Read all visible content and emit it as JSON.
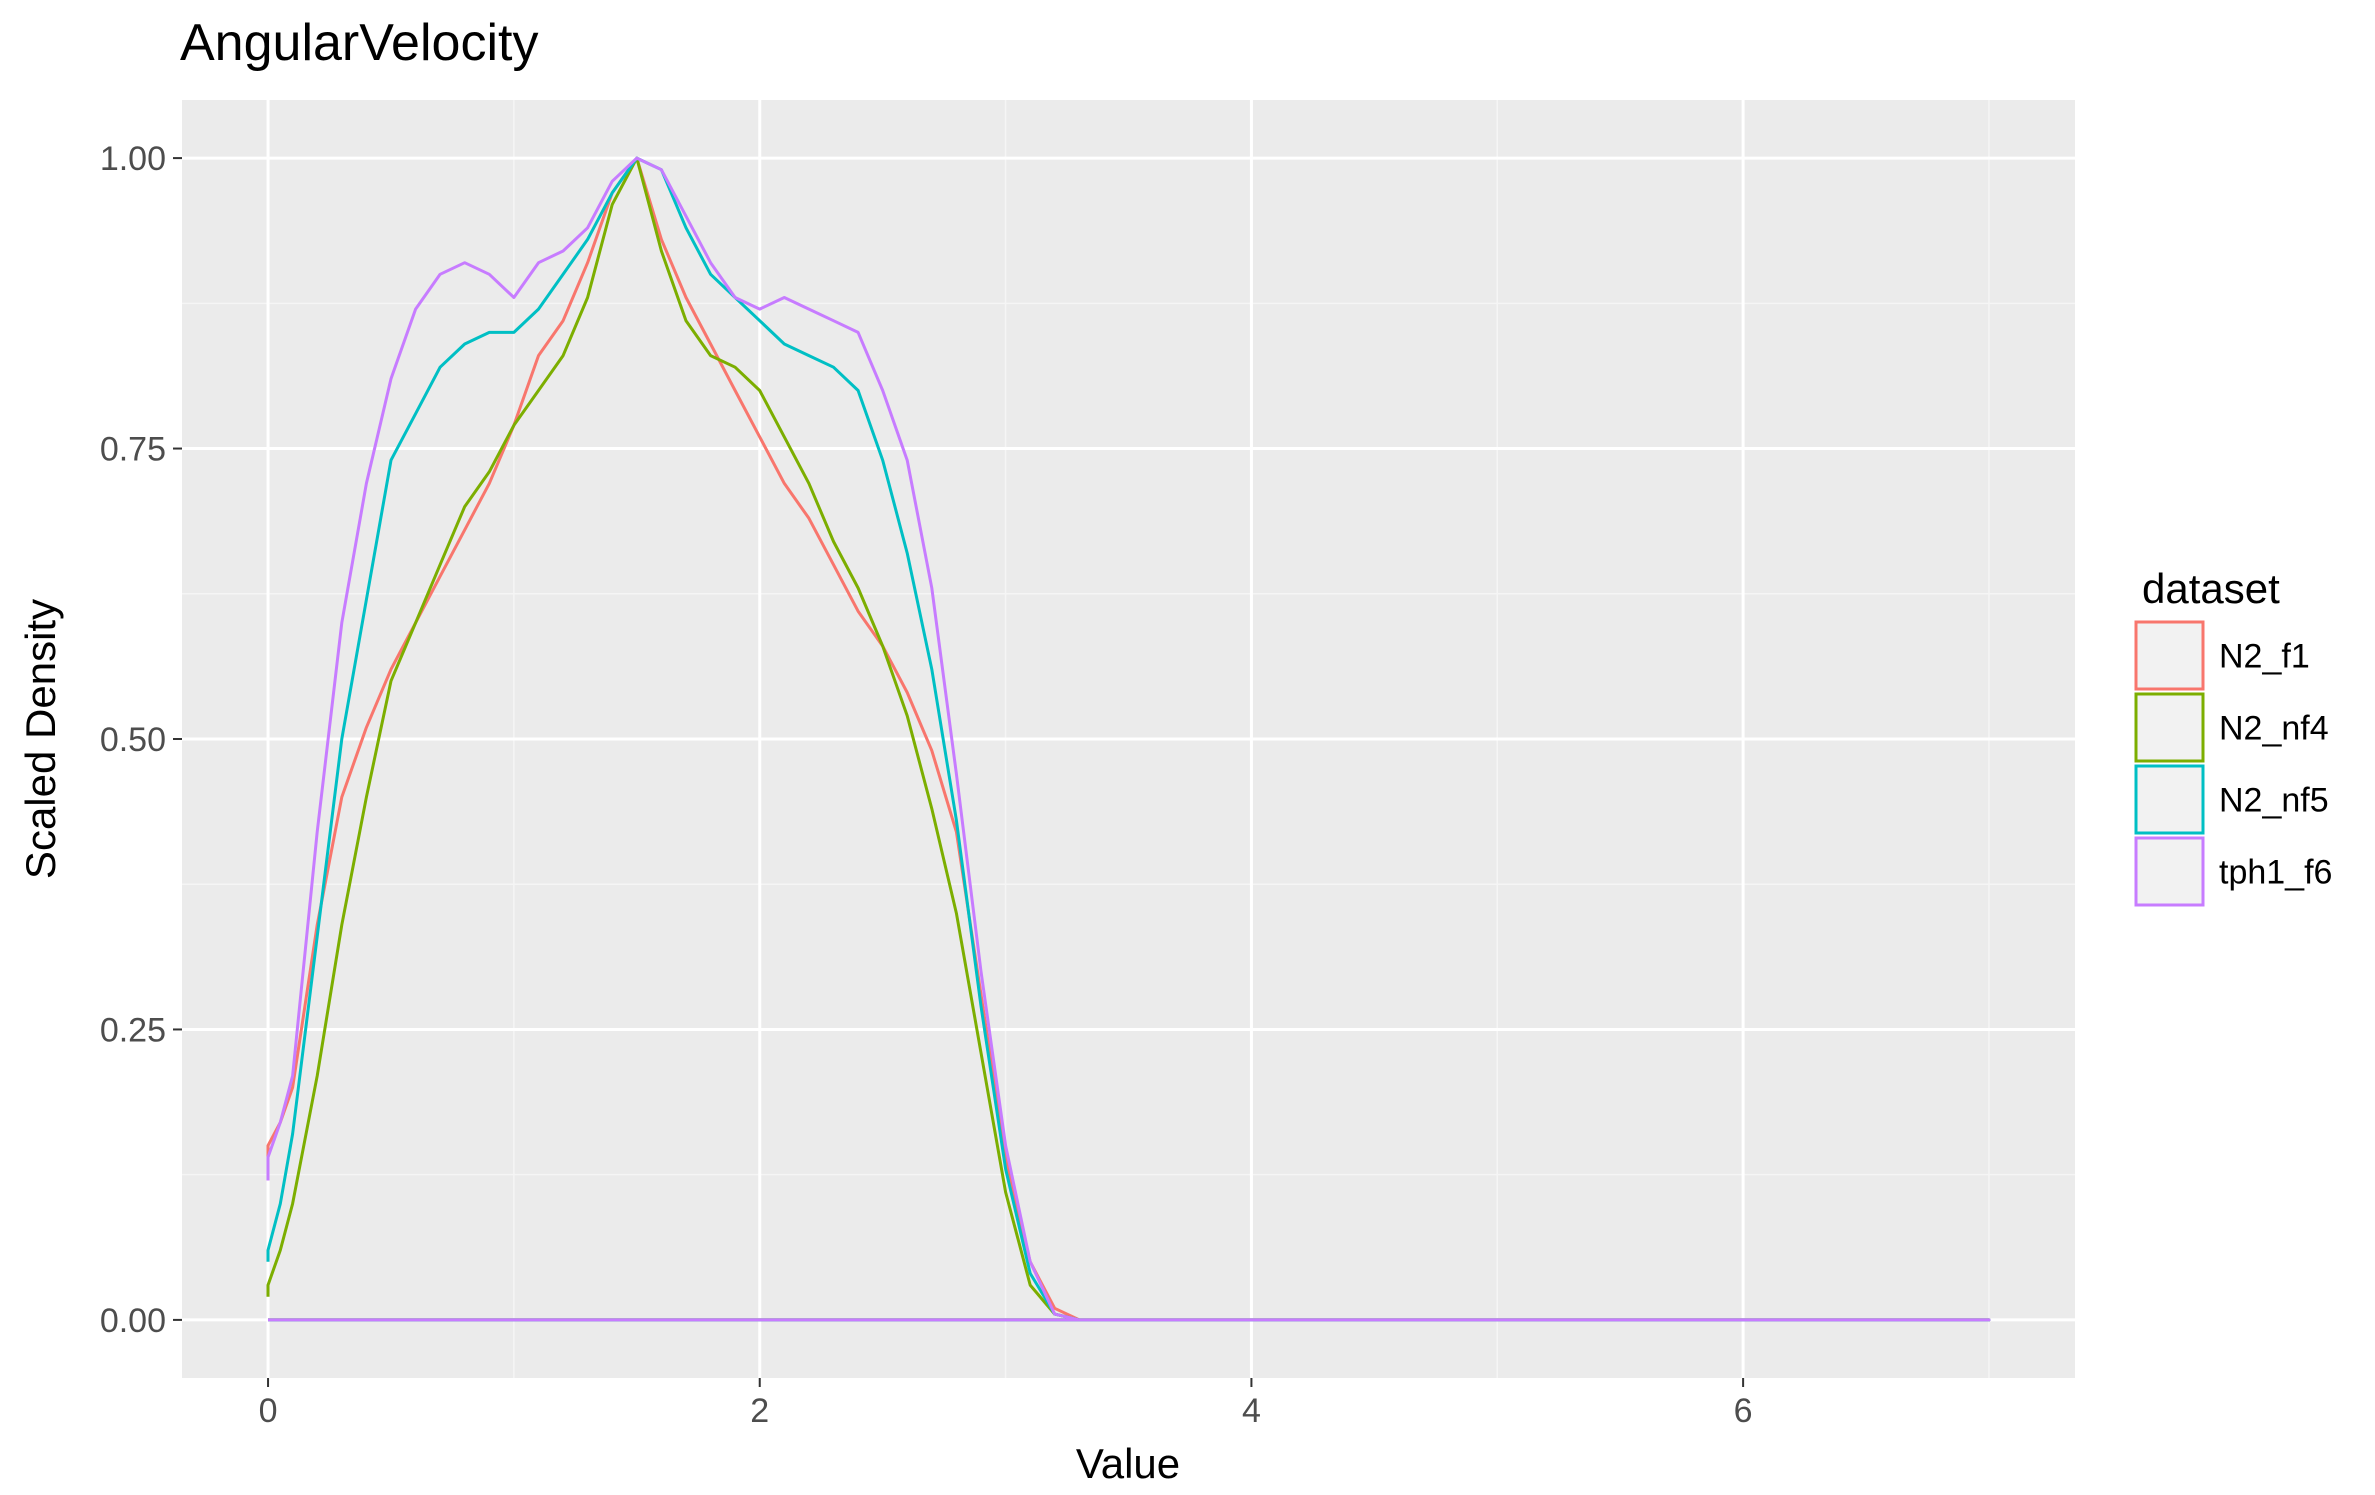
{
  "chart_data": {
    "type": "line",
    "title": "AngularVelocity",
    "xlabel": "Value",
    "ylabel": "Scaled Density",
    "xlim": [
      -0.35,
      7.35
    ],
    "ylim": [
      -0.05,
      1.05
    ],
    "x_ticks": [
      0,
      2,
      4,
      6
    ],
    "x_tick_labels": [
      "0",
      "2",
      "4",
      "6"
    ],
    "y_ticks": [
      0,
      0.25,
      0.5,
      0.75,
      1.0
    ],
    "y_tick_labels": [
      "0.00",
      "0.25",
      "0.50",
      "0.75",
      "1.00"
    ],
    "grid": true,
    "legend_position": "right",
    "legend_title": "dataset",
    "series": [
      {
        "name": "N2_f1",
        "color": "#F8766D",
        "x": [
          0,
          0,
          0.05,
          0.1,
          0.2,
          0.3,
          0.4,
          0.5,
          0.6,
          0.7,
          0.8,
          0.9,
          1.0,
          1.1,
          1.2,
          1.3,
          1.4,
          1.5,
          1.6,
          1.7,
          1.8,
          1.9,
          2.0,
          2.1,
          2.2,
          2.3,
          2.4,
          2.5,
          2.6,
          2.7,
          2.8,
          2.9,
          3.0,
          3.1,
          3.2,
          3.3,
          4.0,
          5.0,
          6.0,
          7.0,
          7.0,
          0
        ],
        "y": [
          0.13,
          0.15,
          0.17,
          0.2,
          0.34,
          0.45,
          0.51,
          0.56,
          0.6,
          0.64,
          0.68,
          0.72,
          0.77,
          0.83,
          0.86,
          0.91,
          0.97,
          1.0,
          0.93,
          0.88,
          0.84,
          0.8,
          0.76,
          0.72,
          0.69,
          0.65,
          0.61,
          0.58,
          0.54,
          0.49,
          0.42,
          0.28,
          0.14,
          0.05,
          0.01,
          0.0,
          0.0,
          0.0,
          0.0,
          0.0,
          0.0,
          0.0
        ]
      },
      {
        "name": "N2_nf4",
        "color": "#7CAE00",
        "x": [
          0,
          0,
          0.05,
          0.1,
          0.2,
          0.3,
          0.4,
          0.5,
          0.6,
          0.7,
          0.8,
          0.9,
          1.0,
          1.1,
          1.2,
          1.3,
          1.4,
          1.5,
          1.6,
          1.7,
          1.8,
          1.9,
          2.0,
          2.1,
          2.2,
          2.3,
          2.4,
          2.5,
          2.6,
          2.7,
          2.8,
          2.9,
          3.0,
          3.1,
          3.2,
          3.3,
          4.0,
          5.0,
          6.0,
          7.0,
          7.0,
          0
        ],
        "y": [
          0.02,
          0.03,
          0.06,
          0.1,
          0.21,
          0.34,
          0.45,
          0.55,
          0.6,
          0.65,
          0.7,
          0.73,
          0.77,
          0.8,
          0.83,
          0.88,
          0.96,
          1.0,
          0.92,
          0.86,
          0.83,
          0.82,
          0.8,
          0.76,
          0.72,
          0.67,
          0.63,
          0.58,
          0.52,
          0.44,
          0.35,
          0.23,
          0.11,
          0.03,
          0.005,
          0.0,
          0.0,
          0.0,
          0.0,
          0.0,
          0.0,
          0.0
        ]
      },
      {
        "name": "N2_nf5",
        "color": "#00BFC4",
        "x": [
          0,
          0,
          0.05,
          0.1,
          0.2,
          0.3,
          0.4,
          0.5,
          0.6,
          0.7,
          0.8,
          0.9,
          1.0,
          1.1,
          1.2,
          1.3,
          1.4,
          1.5,
          1.6,
          1.7,
          1.8,
          1.9,
          2.0,
          2.1,
          2.2,
          2.3,
          2.4,
          2.5,
          2.6,
          2.7,
          2.8,
          2.9,
          3.0,
          3.1,
          3.2,
          3.3,
          4.0,
          5.0,
          6.0,
          7.0,
          7.0,
          0
        ],
        "y": [
          0.05,
          0.06,
          0.1,
          0.16,
          0.33,
          0.5,
          0.62,
          0.74,
          0.78,
          0.82,
          0.84,
          0.85,
          0.85,
          0.87,
          0.9,
          0.93,
          0.97,
          1.0,
          0.99,
          0.94,
          0.9,
          0.88,
          0.86,
          0.84,
          0.83,
          0.82,
          0.8,
          0.74,
          0.66,
          0.56,
          0.43,
          0.27,
          0.13,
          0.04,
          0.005,
          0.0,
          0.0,
          0.0,
          0.0,
          0.0,
          0.0,
          0.0
        ]
      },
      {
        "name": "tph1_f6",
        "color": "#C77CFF",
        "x": [
          0,
          0,
          0.05,
          0.1,
          0.2,
          0.3,
          0.4,
          0.5,
          0.6,
          0.7,
          0.8,
          0.9,
          1.0,
          1.1,
          1.2,
          1.3,
          1.4,
          1.5,
          1.6,
          1.7,
          1.8,
          1.9,
          2.0,
          2.1,
          2.2,
          2.3,
          2.4,
          2.5,
          2.6,
          2.7,
          2.8,
          2.9,
          3.0,
          3.1,
          3.2,
          3.3,
          4.0,
          5.0,
          6.0,
          7.0,
          7.0,
          0
        ],
        "y": [
          0.12,
          0.14,
          0.17,
          0.21,
          0.42,
          0.6,
          0.72,
          0.81,
          0.87,
          0.9,
          0.91,
          0.9,
          0.88,
          0.91,
          0.92,
          0.94,
          0.98,
          1.0,
          0.99,
          0.95,
          0.91,
          0.88,
          0.87,
          0.88,
          0.87,
          0.86,
          0.85,
          0.8,
          0.74,
          0.63,
          0.47,
          0.3,
          0.15,
          0.05,
          0.005,
          0.0,
          0.0,
          0.0,
          0.0,
          0.0,
          0.0,
          0.0
        ]
      }
    ]
  }
}
